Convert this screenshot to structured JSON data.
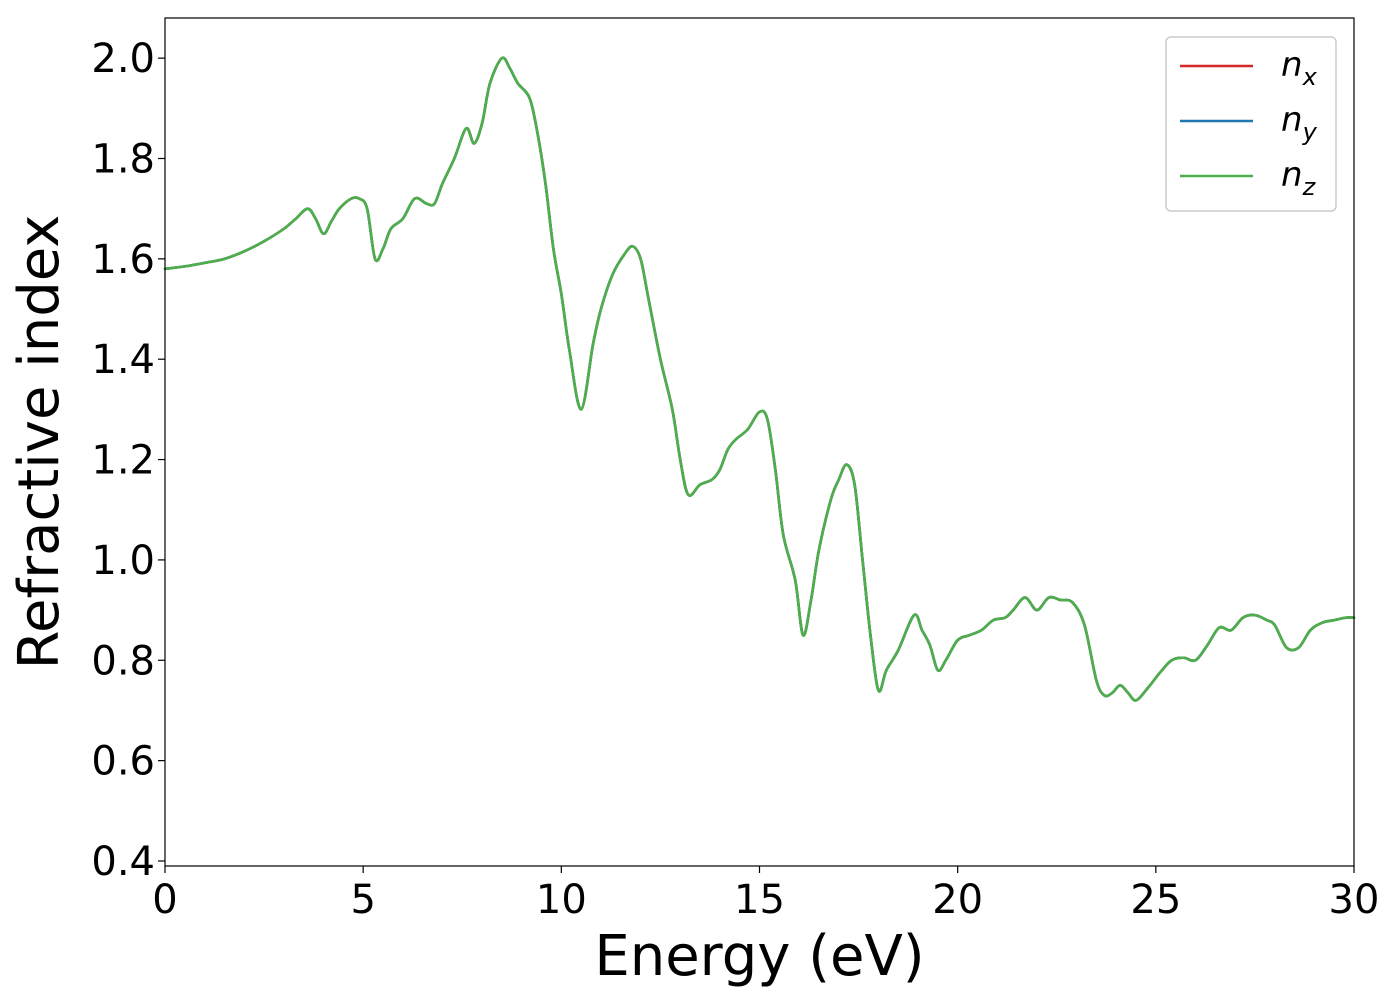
{
  "chart_data": {
    "type": "line",
    "xlabel": "Energy (eV)",
    "ylabel": "Refractive index",
    "xlim": [
      0,
      30
    ],
    "ylim": [
      0.39,
      2.08
    ],
    "xticks": [
      0,
      5,
      10,
      15,
      20,
      25,
      30
    ],
    "yticks": [
      0.4,
      0.6,
      0.8,
      1.0,
      1.2,
      1.4,
      1.6,
      1.8,
      2.0
    ],
    "xtick_labels": [
      "0",
      "5",
      "10",
      "15",
      "20",
      "25",
      "30"
    ],
    "ytick_labels": [
      "0.4",
      "0.6",
      "0.8",
      "1.0",
      "1.2",
      "1.4",
      "1.6",
      "1.8",
      "2.0"
    ],
    "grid": false,
    "legend_position": "top-right",
    "series": [
      {
        "base": "n",
        "sub": "x",
        "color": "#d62728",
        "x": [
          0,
          0.5,
          1,
          1.5,
          2,
          2.5,
          3,
          3.3,
          3.6,
          3.8,
          4,
          4.2,
          4.4,
          4.7,
          4.9,
          5.1,
          5.3,
          5.5,
          5.7,
          6,
          6.3,
          6.6,
          6.8,
          7,
          7.3,
          7.6,
          7.8,
          8,
          8.2,
          8.5,
          8.7,
          8.9,
          9.2,
          9.4,
          9.6,
          9.8,
          10,
          10.2,
          10.5,
          10.8,
          11,
          11.3,
          11.6,
          11.8,
          12,
          12.2,
          12.5,
          12.8,
          13,
          13.2,
          13.5,
          13.8,
          14,
          14.2,
          14.4,
          14.7,
          15,
          15.2,
          15.4,
          15.6,
          15.9,
          16.1,
          16.3,
          16.5,
          16.8,
          17,
          17.2,
          17.4,
          17.6,
          17.8,
          18,
          18.2,
          18.5,
          18.9,
          19.1,
          19.3,
          19.5,
          19.7,
          20,
          20.3,
          20.6,
          20.9,
          21.2,
          21.4,
          21.7,
          22,
          22.3,
          22.6,
          22.9,
          23.2,
          23.5,
          23.7,
          23.9,
          24.1,
          24.3,
          24.5,
          24.8,
          25.1,
          25.4,
          25.7,
          26,
          26.3,
          26.6,
          26.9,
          27.2,
          27.5,
          27.8,
          28,
          28.3,
          28.6,
          28.9,
          29.2,
          29.5,
          29.8,
          30
        ],
        "y": [
          1.58,
          1.585,
          1.592,
          1.6,
          1.615,
          1.635,
          1.66,
          1.68,
          1.7,
          1.68,
          1.65,
          1.675,
          1.7,
          1.72,
          1.72,
          1.7,
          1.6,
          1.62,
          1.66,
          1.68,
          1.72,
          1.71,
          1.71,
          1.75,
          1.8,
          1.86,
          1.83,
          1.87,
          1.95,
          2.0,
          1.98,
          1.95,
          1.92,
          1.85,
          1.75,
          1.62,
          1.53,
          1.42,
          1.3,
          1.43,
          1.5,
          1.57,
          1.61,
          1.625,
          1.6,
          1.52,
          1.4,
          1.3,
          1.2,
          1.13,
          1.15,
          1.16,
          1.18,
          1.22,
          1.24,
          1.26,
          1.295,
          1.28,
          1.18,
          1.05,
          0.96,
          0.85,
          0.92,
          1.02,
          1.12,
          1.16,
          1.19,
          1.15,
          1.0,
          0.85,
          0.74,
          0.78,
          0.82,
          0.89,
          0.86,
          0.83,
          0.78,
          0.8,
          0.84,
          0.85,
          0.86,
          0.88,
          0.885,
          0.9,
          0.925,
          0.9,
          0.925,
          0.92,
          0.915,
          0.87,
          0.76,
          0.73,
          0.735,
          0.75,
          0.735,
          0.72,
          0.745,
          0.775,
          0.8,
          0.805,
          0.8,
          0.83,
          0.865,
          0.86,
          0.885,
          0.89,
          0.88,
          0.87,
          0.825,
          0.825,
          0.86,
          0.875,
          0.88,
          0.885,
          0.885
        ]
      },
      {
        "base": "n",
        "sub": "y",
        "color": "#1f77b4",
        "x": [
          0,
          0.5,
          1,
          1.5,
          2,
          2.5,
          3,
          3.3,
          3.6,
          3.8,
          4,
          4.2,
          4.4,
          4.7,
          4.9,
          5.1,
          5.3,
          5.5,
          5.7,
          6,
          6.3,
          6.6,
          6.8,
          7,
          7.3,
          7.6,
          7.8,
          8,
          8.2,
          8.5,
          8.7,
          8.9,
          9.2,
          9.4,
          9.6,
          9.8,
          10,
          10.2,
          10.5,
          10.8,
          11,
          11.3,
          11.6,
          11.8,
          12,
          12.2,
          12.5,
          12.8,
          13,
          13.2,
          13.5,
          13.8,
          14,
          14.2,
          14.4,
          14.7,
          15,
          15.2,
          15.4,
          15.6,
          15.9,
          16.1,
          16.3,
          16.5,
          16.8,
          17,
          17.2,
          17.4,
          17.6,
          17.8,
          18,
          18.2,
          18.5,
          18.9,
          19.1,
          19.3,
          19.5,
          19.7,
          20,
          20.3,
          20.6,
          20.9,
          21.2,
          21.4,
          21.7,
          22,
          22.3,
          22.6,
          22.9,
          23.2,
          23.5,
          23.7,
          23.9,
          24.1,
          24.3,
          24.5,
          24.8,
          25.1,
          25.4,
          25.7,
          26,
          26.3,
          26.6,
          26.9,
          27.2,
          27.5,
          27.8,
          28,
          28.3,
          28.6,
          28.9,
          29.2,
          29.5,
          29.8,
          30
        ],
        "y": [
          1.58,
          1.585,
          1.592,
          1.6,
          1.615,
          1.635,
          1.66,
          1.68,
          1.7,
          1.68,
          1.65,
          1.675,
          1.7,
          1.72,
          1.72,
          1.7,
          1.6,
          1.62,
          1.66,
          1.68,
          1.72,
          1.71,
          1.71,
          1.75,
          1.8,
          1.86,
          1.83,
          1.87,
          1.95,
          2.0,
          1.98,
          1.95,
          1.92,
          1.85,
          1.75,
          1.62,
          1.53,
          1.42,
          1.3,
          1.43,
          1.5,
          1.57,
          1.61,
          1.625,
          1.6,
          1.52,
          1.4,
          1.3,
          1.2,
          1.13,
          1.15,
          1.16,
          1.18,
          1.22,
          1.24,
          1.26,
          1.295,
          1.28,
          1.18,
          1.05,
          0.96,
          0.85,
          0.92,
          1.02,
          1.12,
          1.16,
          1.19,
          1.15,
          1.0,
          0.85,
          0.74,
          0.78,
          0.82,
          0.89,
          0.86,
          0.83,
          0.78,
          0.8,
          0.84,
          0.85,
          0.86,
          0.88,
          0.885,
          0.9,
          0.925,
          0.9,
          0.925,
          0.92,
          0.915,
          0.87,
          0.76,
          0.73,
          0.735,
          0.75,
          0.735,
          0.72,
          0.745,
          0.775,
          0.8,
          0.805,
          0.8,
          0.83,
          0.865,
          0.86,
          0.885,
          0.89,
          0.88,
          0.87,
          0.825,
          0.825,
          0.86,
          0.875,
          0.88,
          0.885,
          0.885
        ]
      },
      {
        "base": "n",
        "sub": "z",
        "color": "#4daf4a",
        "x": [
          0,
          0.5,
          1,
          1.5,
          2,
          2.5,
          3,
          3.3,
          3.6,
          3.8,
          4,
          4.2,
          4.4,
          4.7,
          4.9,
          5.1,
          5.3,
          5.5,
          5.7,
          6,
          6.3,
          6.6,
          6.8,
          7,
          7.3,
          7.6,
          7.8,
          8,
          8.2,
          8.5,
          8.7,
          8.9,
          9.2,
          9.4,
          9.6,
          9.8,
          10,
          10.2,
          10.5,
          10.8,
          11,
          11.3,
          11.6,
          11.8,
          12,
          12.2,
          12.5,
          12.8,
          13,
          13.2,
          13.5,
          13.8,
          14,
          14.2,
          14.4,
          14.7,
          15,
          15.2,
          15.4,
          15.6,
          15.9,
          16.1,
          16.3,
          16.5,
          16.8,
          17,
          17.2,
          17.4,
          17.6,
          17.8,
          18,
          18.2,
          18.5,
          18.9,
          19.1,
          19.3,
          19.5,
          19.7,
          20,
          20.3,
          20.6,
          20.9,
          21.2,
          21.4,
          21.7,
          22,
          22.3,
          22.6,
          22.9,
          23.2,
          23.5,
          23.7,
          23.9,
          24.1,
          24.3,
          24.5,
          24.8,
          25.1,
          25.4,
          25.7,
          26,
          26.3,
          26.6,
          26.9,
          27.2,
          27.5,
          27.8,
          28,
          28.3,
          28.6,
          28.9,
          29.2,
          29.5,
          29.8,
          30
        ],
        "y": [
          1.58,
          1.585,
          1.592,
          1.6,
          1.615,
          1.635,
          1.66,
          1.68,
          1.7,
          1.68,
          1.65,
          1.675,
          1.7,
          1.72,
          1.72,
          1.7,
          1.6,
          1.62,
          1.66,
          1.68,
          1.72,
          1.71,
          1.71,
          1.75,
          1.8,
          1.86,
          1.83,
          1.87,
          1.95,
          2.0,
          1.98,
          1.95,
          1.92,
          1.85,
          1.75,
          1.62,
          1.53,
          1.42,
          1.3,
          1.43,
          1.5,
          1.57,
          1.61,
          1.625,
          1.6,
          1.52,
          1.4,
          1.3,
          1.2,
          1.13,
          1.15,
          1.16,
          1.18,
          1.22,
          1.24,
          1.26,
          1.295,
          1.28,
          1.18,
          1.05,
          0.96,
          0.85,
          0.92,
          1.02,
          1.12,
          1.16,
          1.19,
          1.15,
          1.0,
          0.85,
          0.74,
          0.78,
          0.82,
          0.89,
          0.86,
          0.83,
          0.78,
          0.8,
          0.84,
          0.85,
          0.86,
          0.88,
          0.885,
          0.9,
          0.925,
          0.9,
          0.925,
          0.92,
          0.915,
          0.87,
          0.76,
          0.73,
          0.735,
          0.75,
          0.735,
          0.72,
          0.745,
          0.775,
          0.8,
          0.805,
          0.8,
          0.83,
          0.865,
          0.86,
          0.885,
          0.89,
          0.88,
          0.87,
          0.825,
          0.825,
          0.86,
          0.875,
          0.88,
          0.885,
          0.885
        ]
      }
    ]
  }
}
